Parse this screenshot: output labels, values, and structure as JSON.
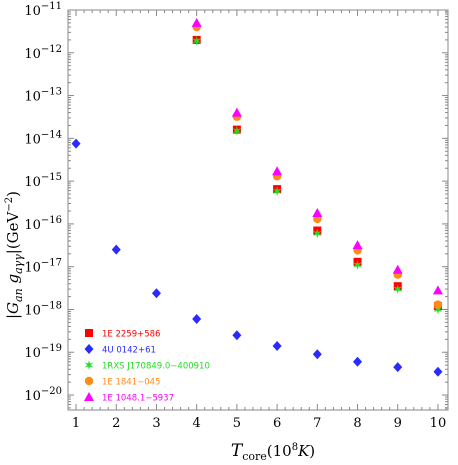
{
  "chart_data": {
    "type": "scatter",
    "xlabel": "T_core(10^8 K)",
    "ylabel": "|G_an g_aγγ|(GeV^-2)",
    "x": [
      1,
      2,
      3,
      4,
      5,
      6,
      7,
      8,
      9,
      10
    ],
    "xlim": [
      0.8,
      10.25
    ],
    "ylim_log10": [
      -20.35,
      -11
    ],
    "y_scale": "log",
    "x_ticks": [
      {
        "label": "1",
        "v": 1
      },
      {
        "label": "2",
        "v": 2
      },
      {
        "label": "3",
        "v": 3
      },
      {
        "label": "4",
        "v": 4
      },
      {
        "label": "5",
        "v": 5
      },
      {
        "label": "6",
        "v": 6
      },
      {
        "label": "7",
        "v": 7
      },
      {
        "label": "8",
        "v": 8
      },
      {
        "label": "9",
        "v": 9
      },
      {
        "label": "10",
        "v": 10
      }
    ],
    "y_ticks": [
      {
        "base": "10",
        "exp": "−11",
        "v": -11
      },
      {
        "base": "10",
        "exp": "−12",
        "v": -12
      },
      {
        "base": "10",
        "exp": "−13",
        "v": -13
      },
      {
        "base": "10",
        "exp": "−14",
        "v": -14
      },
      {
        "base": "10",
        "exp": "−15",
        "v": -15
      },
      {
        "base": "10",
        "exp": "−16",
        "v": -16
      },
      {
        "base": "10",
        "exp": "−17",
        "v": -17
      },
      {
        "base": "10",
        "exp": "−18",
        "v": -18
      },
      {
        "base": "10",
        "exp": "−19",
        "v": -19
      },
      {
        "base": "10",
        "exp": "−20",
        "v": -20
      }
    ],
    "legend_position": "bottom-left",
    "series": [
      {
        "name": "1E 2259+586",
        "color": "#ff0000",
        "marker": "square",
        "points": [
          [
            4,
            2e-12
          ],
          [
            5,
            1.6e-14
          ],
          [
            6,
            6.5e-16
          ],
          [
            7,
            7e-17
          ],
          [
            8,
            1.3e-17
          ],
          [
            9,
            3.5e-18
          ],
          [
            10,
            1.2e-18
          ]
        ]
      },
      {
        "name": "4U 0142+61",
        "color": "#2a2aff",
        "marker": "diamond",
        "points": [
          [
            1,
            7.5e-15
          ],
          [
            2,
            2.5e-17
          ],
          [
            3,
            2.4e-18
          ],
          [
            4,
            6e-19
          ],
          [
            5,
            2.5e-19
          ],
          [
            6,
            1.4e-19
          ],
          [
            7,
            9e-20
          ],
          [
            8,
            6e-20
          ],
          [
            9,
            4.5e-20
          ],
          [
            10,
            3.5e-20
          ]
        ]
      },
      {
        "name": "1RXS J170849.0−400910",
        "color": "#22dd22",
        "marker": "star",
        "points": [
          [
            4,
            1.9e-12
          ],
          [
            5,
            1.5e-14
          ],
          [
            6,
            5.8e-16
          ],
          [
            7,
            6e-17
          ],
          [
            8,
            1.1e-17
          ],
          [
            9,
            3e-18
          ],
          [
            10,
            1e-18
          ]
        ]
      },
      {
        "name": "1E 1841−045",
        "color": "#ff8c1a",
        "marker": "circle",
        "points": [
          [
            4,
            4e-12
          ],
          [
            5,
            3.2e-14
          ],
          [
            6,
            1.3e-15
          ],
          [
            7,
            1.3e-16
          ],
          [
            8,
            2.4e-17
          ],
          [
            9,
            6.5e-18
          ],
          [
            10,
            1.3e-18
          ]
        ]
      },
      {
        "name": "1E 1048.1−5937",
        "color": "#ff00ff",
        "marker": "triangle",
        "points": [
          [
            4,
            5e-12
          ],
          [
            5,
            4e-14
          ],
          [
            6,
            1.7e-15
          ],
          [
            7,
            1.8e-16
          ],
          [
            8,
            3.2e-17
          ],
          [
            9,
            8.5e-18
          ],
          [
            10,
            2.8e-18
          ]
        ]
      }
    ]
  }
}
